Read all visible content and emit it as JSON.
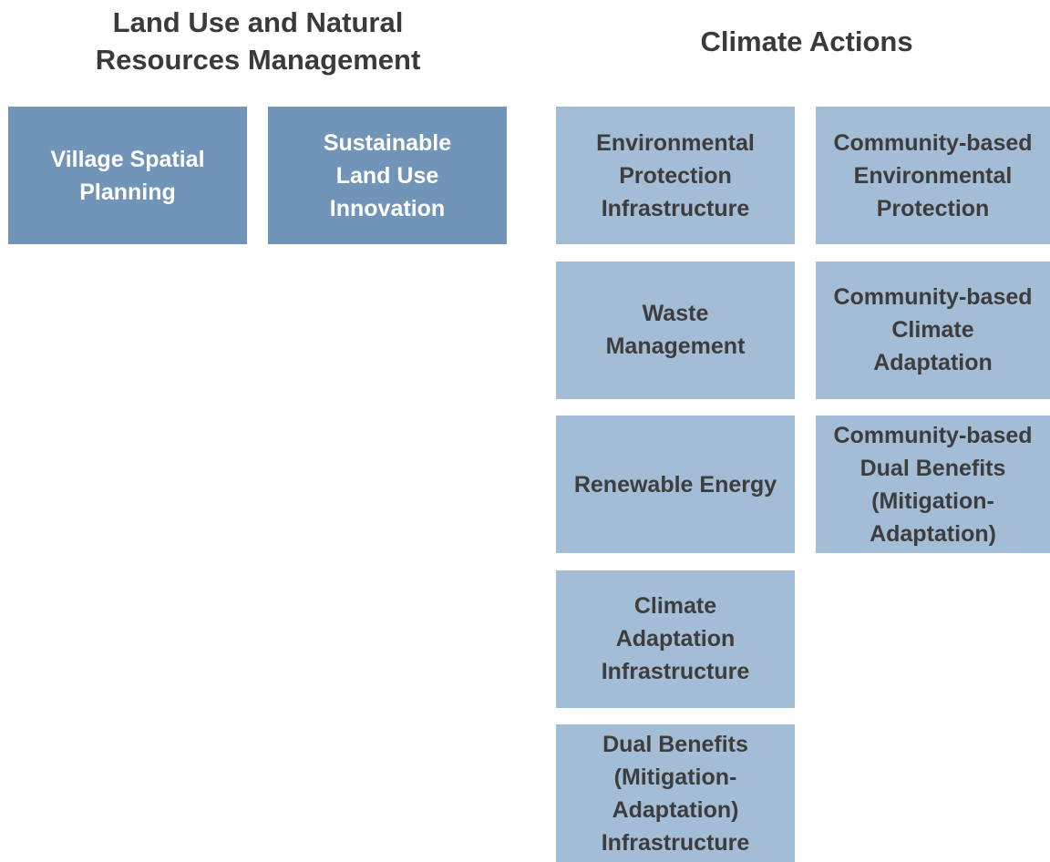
{
  "groups": [
    {
      "title": [
        "Land Use and Natural",
        "Resources Management"
      ],
      "columns": [
        [
          {
            "lines": [
              "Village Spatial",
              "Planning"
            ]
          }
        ],
        [
          {
            "lines": [
              "Sustainable",
              "Land Use",
              "Innovation"
            ]
          }
        ]
      ]
    },
    {
      "title": [
        "Climate Actions"
      ],
      "columns": [
        [
          {
            "lines": [
              "Environmental",
              "Protection",
              "Infrastructure"
            ]
          },
          {
            "lines": [
              "Waste",
              "Management"
            ]
          },
          {
            "lines": [
              "Renewable Energy"
            ]
          },
          {
            "lines": [
              "Climate",
              "Adaptation",
              "Infrastructure"
            ]
          },
          {
            "lines": [
              "Dual Benefits",
              "(Mitigation-",
              "Adaptation)",
              "Infrastructure"
            ]
          }
        ],
        [
          {
            "lines": [
              "Community-based",
              "Environmental",
              "Protection"
            ]
          },
          {
            "lines": [
              "Community-based",
              "Climate",
              "Adaptation"
            ]
          },
          {
            "lines": [
              "Community-based",
              "Dual Benefits",
              "(Mitigation-",
              "Adaptation)"
            ]
          }
        ]
      ]
    }
  ]
}
